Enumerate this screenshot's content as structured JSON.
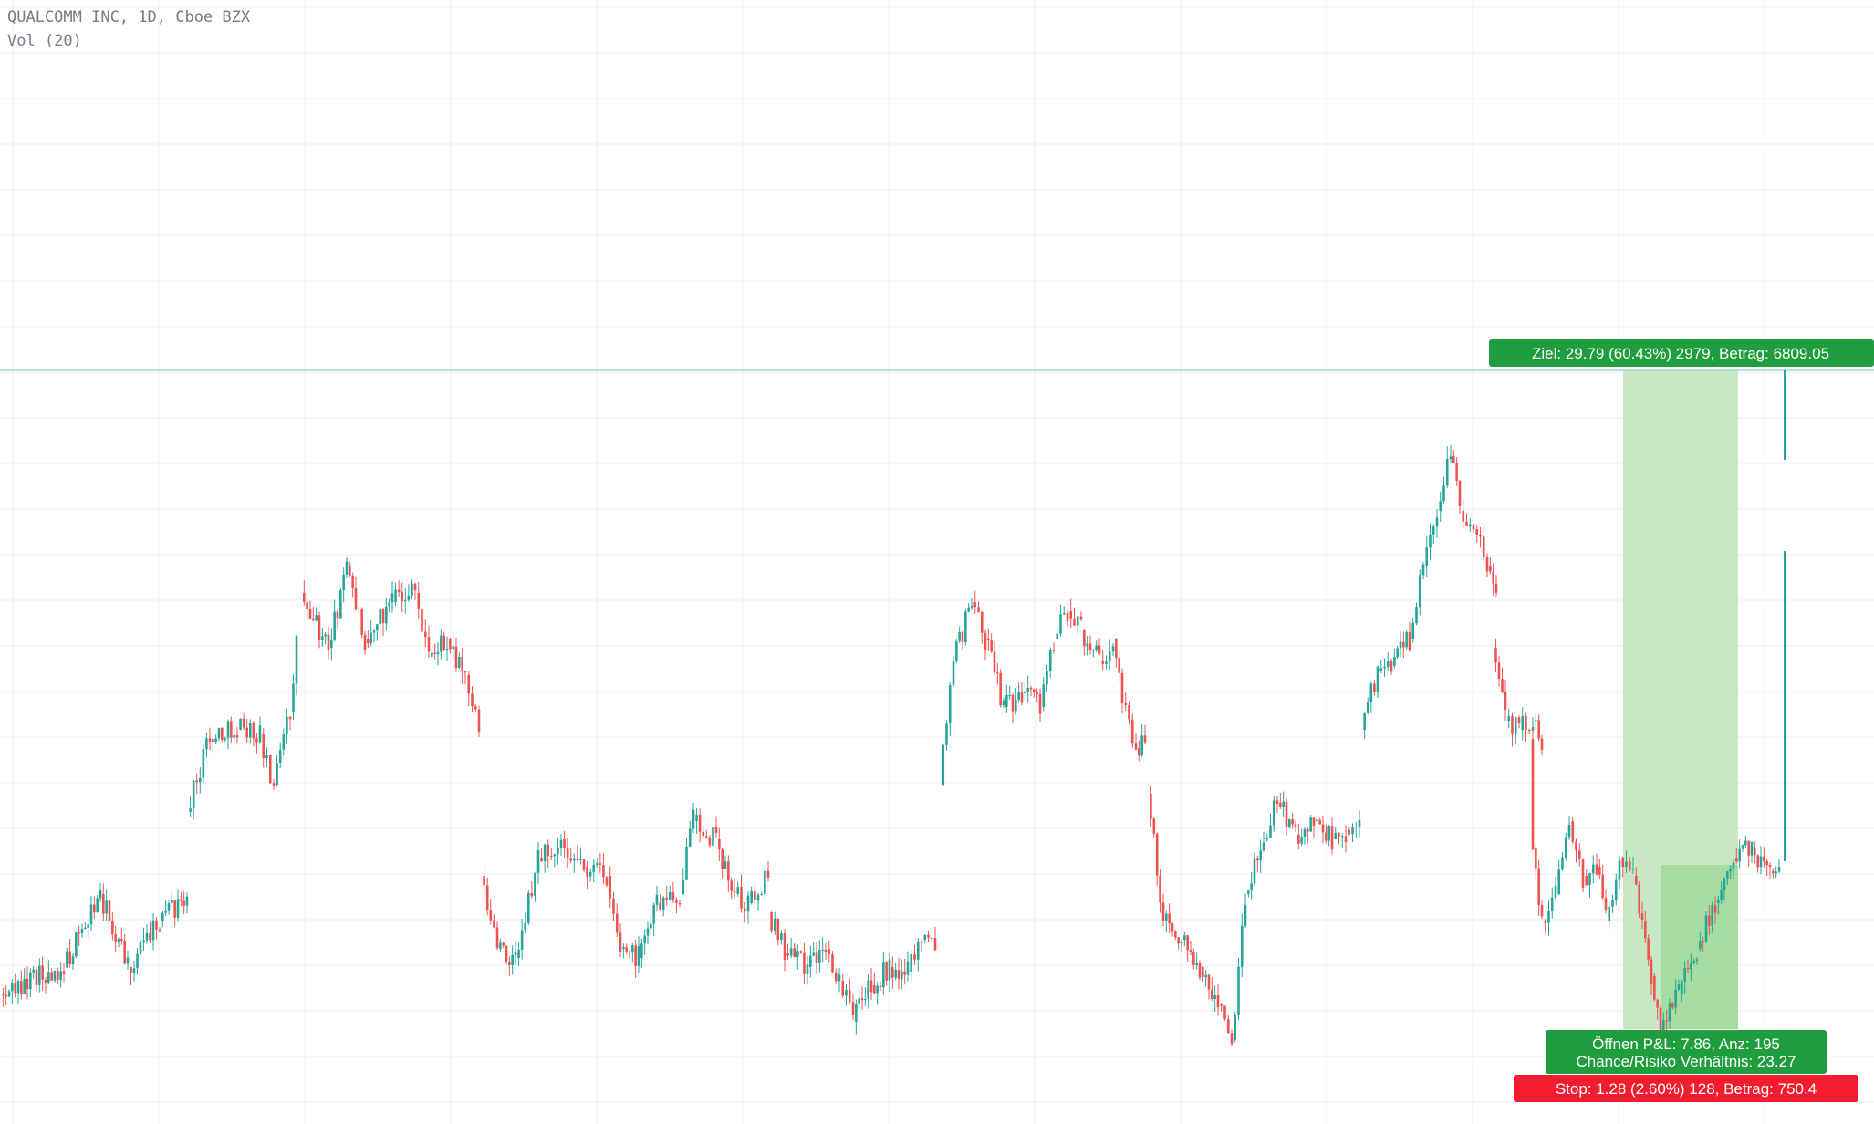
{
  "legend": {
    "symbol_line": "QUALCOMM INC, 1D, Cboe BZX",
    "indicator_line": "Vol (20)"
  },
  "colors": {
    "up": "#26a69a",
    "down": "#ef5350",
    "grid": "#e9f2f2",
    "target_line": "#9fd9cf",
    "target_label_bg": "#1f9d3f",
    "stop_label_bg": "#f21d2f",
    "profit_zone": "#c7e8c3",
    "profit_zone_inner": "#a6dca1"
  },
  "chart_data": {
    "type": "candlestick",
    "title": "QUALCOMM INC, 1D, Cboe BZX",
    "indicators": [
      "Vol (20)"
    ],
    "grid": true,
    "legend_position": "top-left",
    "y_axis": {
      "unit": "price",
      "visible": false
    },
    "x_axis": {
      "visible": false
    },
    "price_path_segments": [
      {
        "segment": 1,
        "points": [
          [
            0,
            1090
          ],
          [
            70,
            1060
          ],
          [
            110,
            980
          ],
          [
            140,
            1060
          ],
          [
            175,
            1010
          ],
          [
            205,
            985
          ]
        ]
      },
      {
        "segment": 2,
        "points": [
          [
            205,
            890
          ],
          [
            230,
            810
          ],
          [
            260,
            800
          ],
          [
            285,
            805
          ],
          [
            300,
            860
          ],
          [
            318,
            780
          ],
          [
            325,
            700
          ]
        ]
      },
      {
        "segment": 3,
        "points": [
          [
            330,
            650
          ],
          [
            360,
            710
          ],
          [
            380,
            620
          ],
          [
            400,
            700
          ],
          [
            430,
            660
          ],
          [
            455,
            650
          ],
          [
            470,
            720
          ],
          [
            490,
            700
          ],
          [
            510,
            740
          ],
          [
            525,
            790
          ]
        ]
      },
      {
        "segment": 4,
        "points": [
          [
            527,
            960
          ],
          [
            545,
            1040
          ],
          [
            565,
            1050
          ],
          [
            590,
            940
          ],
          [
            615,
            920
          ],
          [
            640,
            950
          ],
          [
            665,
            960
          ],
          [
            680,
            1040
          ],
          [
            700,
            1050
          ],
          [
            720,
            990
          ],
          [
            745,
            980
          ],
          [
            760,
            900
          ],
          [
            785,
            920
          ],
          [
            805,
            980
          ],
          [
            820,
            990
          ],
          [
            842,
            960
          ]
        ]
      },
      {
        "segment": 5,
        "points": [
          [
            842,
            1000
          ],
          [
            860,
            1045
          ],
          [
            885,
            1060
          ],
          [
            905,
            1040
          ],
          [
            920,
            1075
          ],
          [
            935,
            1120
          ],
          [
            955,
            1080
          ],
          [
            975,
            1060
          ],
          [
            995,
            1065
          ],
          [
            1010,
            1030
          ],
          [
            1025,
            1040
          ]
        ]
      },
      {
        "segment": 6,
        "points": [
          [
            1030,
            860
          ],
          [
            1045,
            725
          ],
          [
            1065,
            660
          ],
          [
            1080,
            700
          ],
          [
            1100,
            775
          ],
          [
            1120,
            760
          ],
          [
            1140,
            775
          ],
          [
            1155,
            700
          ],
          [
            1170,
            670
          ],
          [
            1185,
            690
          ],
          [
            1205,
            725
          ],
          [
            1220,
            700
          ],
          [
            1230,
            770
          ],
          [
            1245,
            820
          ],
          [
            1255,
            810
          ]
        ]
      },
      {
        "segment": 7,
        "points": [
          [
            1258,
            870
          ],
          [
            1275,
            1010
          ],
          [
            1295,
            1030
          ],
          [
            1315,
            1060
          ],
          [
            1335,
            1100
          ],
          [
            1350,
            1140
          ],
          [
            1365,
            980
          ],
          [
            1385,
            920
          ],
          [
            1400,
            880
          ],
          [
            1420,
            915
          ],
          [
            1440,
            900
          ],
          [
            1460,
            920
          ],
          [
            1475,
            910
          ],
          [
            1490,
            900
          ]
        ]
      },
      {
        "segment": 8,
        "points": [
          [
            1492,
            800
          ],
          [
            1510,
            735
          ],
          [
            1525,
            730
          ],
          [
            1545,
            700
          ],
          [
            1560,
            620
          ],
          [
            1575,
            560
          ],
          [
            1590,
            500
          ],
          [
            1600,
            560
          ],
          [
            1615,
            580
          ],
          [
            1630,
            620
          ],
          [
            1640,
            650
          ]
        ]
      },
      {
        "segment": 9,
        "points": [
          [
            1636,
            710
          ],
          [
            1650,
            790
          ],
          [
            1665,
            800
          ],
          [
            1680,
            790
          ],
          [
            1690,
            810
          ],
          [
            1680,
            930
          ],
          [
            1690,
            1010
          ],
          [
            1705,
            980
          ],
          [
            1720,
            900
          ],
          [
            1735,
            960
          ],
          [
            1750,
            950
          ],
          [
            1760,
            1010
          ],
          [
            1775,
            940
          ],
          [
            1790,
            960
          ],
          [
            1800,
            1010
          ],
          [
            1810,
            1070
          ],
          [
            1820,
            1130
          ],
          [
            1840,
            1090
          ],
          [
            1860,
            1040
          ],
          [
            1880,
            990
          ],
          [
            1900,
            940
          ],
          [
            1920,
            930
          ],
          [
            1940,
            955
          ],
          [
            1950,
            960
          ]
        ]
      }
    ],
    "annotations": [
      {
        "kind": "position-target-label",
        "text": "Ziel: 29.79 (60.43%) 2979, Betrag: 6809.05"
      },
      {
        "kind": "position-info-label",
        "lines": [
          "Öffnen P&L: 7.86, Anz: 195",
          "Chance/Risiko Verhältnis: 23.27"
        ]
      },
      {
        "kind": "position-stop-label",
        "text": "Stop: 1.28 (2.60%) 128, Betrag: 750.4"
      }
    ]
  }
}
